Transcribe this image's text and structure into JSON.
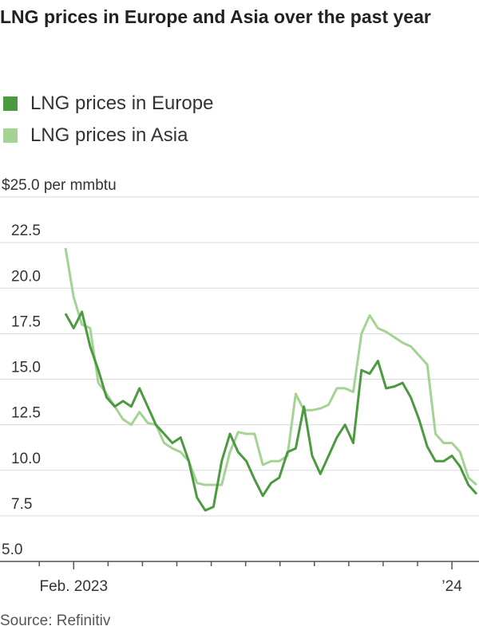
{
  "chart_data": {
    "type": "line",
    "title": "LNG prices in Europe and Asia over the past year",
    "source": "Source: Refinitiv",
    "categories": [
      null,
      "Feb. 2023",
      null,
      null,
      null,
      null,
      null,
      null,
      null,
      null,
      null,
      null,
      null,
      null,
      null,
      null,
      null,
      null,
      null,
      null,
      null,
      null,
      null,
      null,
      null,
      null,
      null,
      null,
      null,
      null,
      null,
      null,
      null,
      null,
      null,
      null,
      null,
      null,
      null,
      null,
      null,
      null,
      null,
      null,
      null,
      null,
      null,
      "’24",
      null,
      null,
      null
    ],
    "series": [
      {
        "name": "LNG prices in Europe",
        "color": "#4c9a3f",
        "values": [
          18.6,
          17.8,
          18.7,
          16.8,
          15.5,
          14.0,
          13.5,
          13.8,
          13.5,
          14.5,
          13.5,
          12.5,
          12.0,
          11.5,
          11.8,
          10.5,
          8.5,
          7.8,
          8.0,
          10.5,
          12.0,
          11.0,
          10.5,
          9.5,
          8.6,
          9.3,
          9.6,
          11.0,
          11.2,
          13.5,
          10.8,
          9.8,
          10.8,
          11.8,
          12.5,
          11.5,
          15.5,
          15.3,
          16.0,
          14.5,
          14.6,
          14.8,
          14.0,
          12.8,
          11.3,
          10.5,
          10.5,
          10.8,
          10.2,
          9.2,
          8.7
        ]
      },
      {
        "name": "LNG prices in Asia",
        "color": "#a4d394",
        "values": [
          22.2,
          19.5,
          18.0,
          17.8,
          14.8,
          14.2,
          13.5,
          12.8,
          12.5,
          13.2,
          12.6,
          12.5,
          11.5,
          11.2,
          11.0,
          10.5,
          9.3,
          9.2,
          9.2,
          9.2,
          11.0,
          12.1,
          12.0,
          12.0,
          10.3,
          10.5,
          10.5,
          10.8,
          14.2,
          13.3,
          13.3,
          13.4,
          13.6,
          14.5,
          14.5,
          14.3,
          17.5,
          18.5,
          17.8,
          17.6,
          17.3,
          17.0,
          16.8,
          16.3,
          15.8,
          12.0,
          11.5,
          11.5,
          11.0,
          9.6,
          9.2
        ]
      }
    ],
    "ylim": [
      5,
      25
    ],
    "yticks": [
      {
        "value": 5,
        "label": "5.0"
      },
      7.5,
      {
        "value": 10,
        "label": "10.0"
      },
      12.5,
      {
        "value": 15,
        "label": "15.0"
      },
      17.5,
      {
        "value": 20,
        "label": "20.0"
      },
      22.5,
      {
        "value": 25,
        "label": "$25.0 per mmbtu"
      }
    ],
    "grid": true
  }
}
